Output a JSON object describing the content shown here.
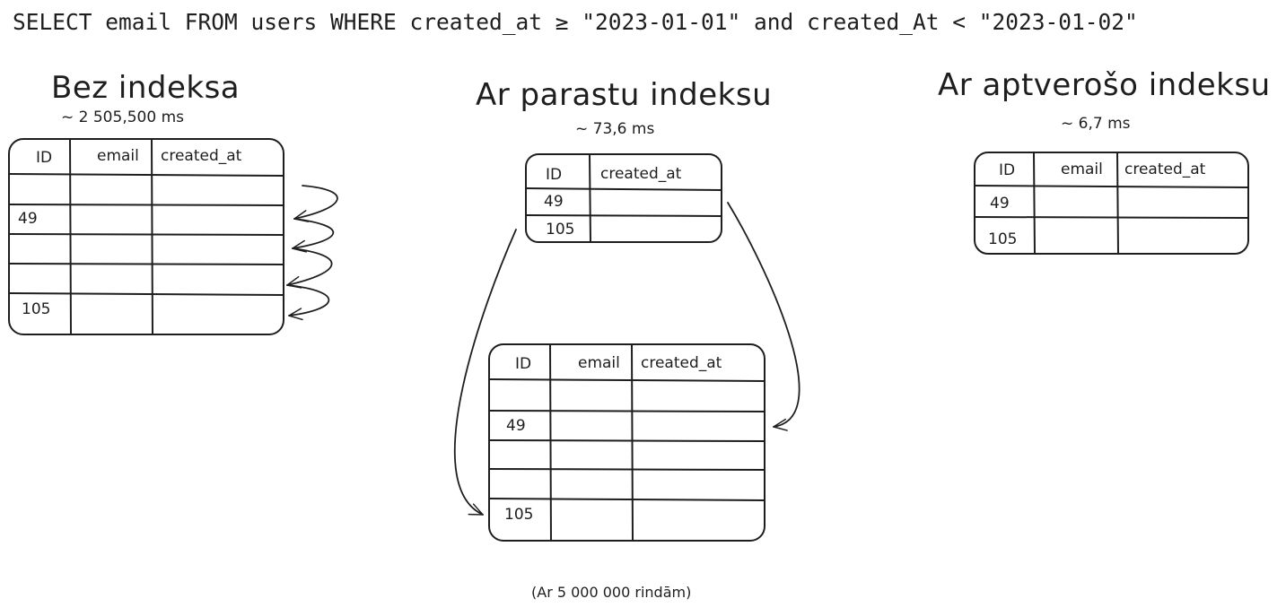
{
  "query": "SELECT email FROM users WHERE created_at ≥ \"2023-01-01\" and created_At < \"2023-01-02\"",
  "sections": {
    "no_index": {
      "title": "Bez indeksa",
      "timing": "~ 2 505,500 ms",
      "columns": [
        "ID",
        "email",
        "created_at"
      ],
      "rows": [
        "",
        "49",
        "",
        "",
        "105"
      ]
    },
    "plain_index": {
      "title": "Ar parastu indeksu",
      "timing": "~ 73,6 ms",
      "index_columns": [
        "ID",
        "created_at"
      ],
      "index_rows": [
        "49",
        "105"
      ],
      "table_columns": [
        "ID",
        "email",
        "created_at"
      ],
      "table_rows": [
        "",
        "49",
        "",
        "",
        "105"
      ]
    },
    "covering_index": {
      "title": "Ar aptverošo indeksu",
      "timing": "~ 6,7 ms",
      "columns": [
        "ID",
        "email",
        "created_at"
      ],
      "rows": [
        "49",
        "105"
      ]
    }
  },
  "footnote": "(Ar 5 000 000 rindām)"
}
